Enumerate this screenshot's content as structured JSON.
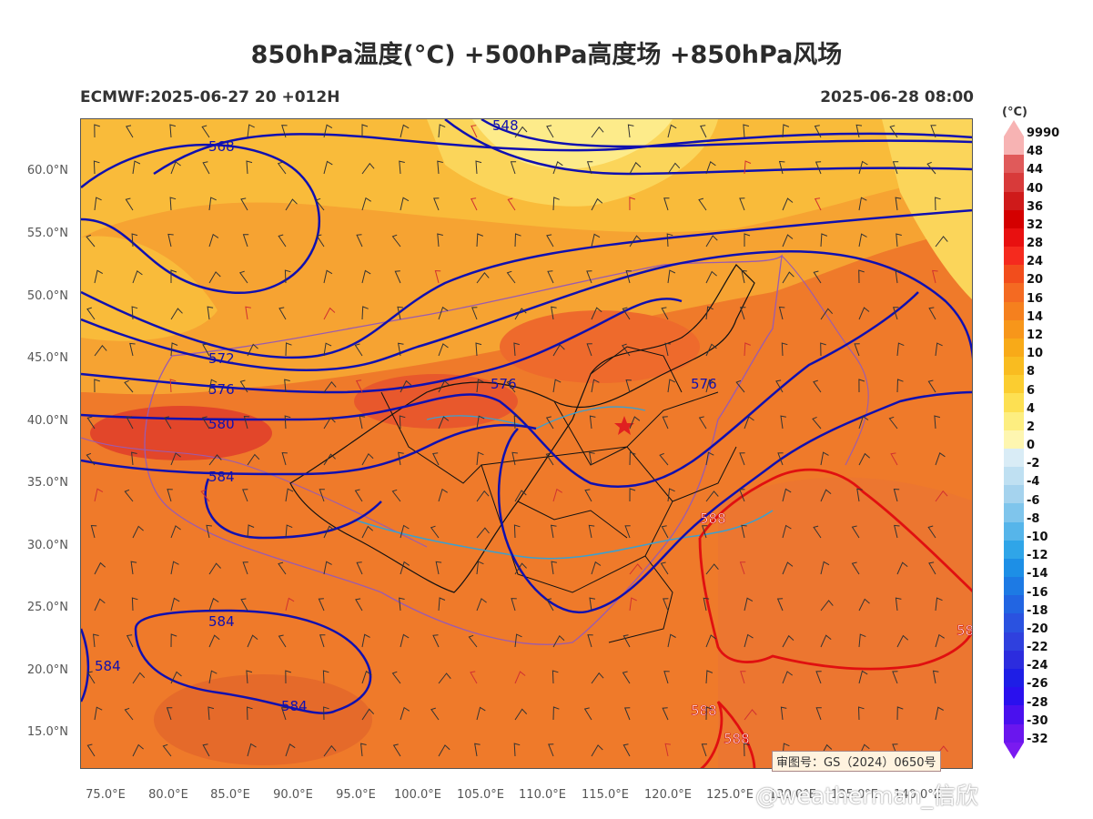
{
  "title": "850hPa温度(°C) +500hPa高度场 +850hPa风场",
  "subtitle_left": "ECMWF:2025-06-27 20 +012H",
  "subtitle_right": "2025-06-28 08:00",
  "lat_labels": [
    "60.0°N",
    "55.0°N",
    "50.0°N",
    "45.0°N",
    "40.0°N",
    "35.0°N",
    "30.0°N",
    "25.0°N",
    "20.0°N",
    "15.0°N"
  ],
  "lon_labels": [
    "75.0°E",
    "80.0°E",
    "85.0°E",
    "90.0°E",
    "95.0°E",
    "100.0°E",
    "105.0°E",
    "110.0°E",
    "115.0°E",
    "120.0°E",
    "125.0°E",
    "130.0°E",
    "135.0°E",
    "140.0°E"
  ],
  "colorbar": {
    "unit": "(°C)",
    "labels": [
      "9990",
      "48",
      "44",
      "40",
      "36",
      "32",
      "28",
      "24",
      "20",
      "16",
      "14",
      "12",
      "10",
      "8",
      "6",
      "4",
      "2",
      "0",
      "-2",
      "-4",
      "-6",
      "-8",
      "-10",
      "-12",
      "-14",
      "-16",
      "-18",
      "-20",
      "-22",
      "-24",
      "-26",
      "-28",
      "-30",
      "-32"
    ],
    "colors": [
      "#f7b3b3",
      "#e05a5a",
      "#d83a3a",
      "#cf1a1a",
      "#d40000",
      "#e81010",
      "#f52a1e",
      "#f24d1c",
      "#f46a22",
      "#f5801e",
      "#f7961a",
      "#f8aa18",
      "#f9bc20",
      "#fbcd30",
      "#fde052",
      "#fdee80",
      "#fef6b0",
      "#d9ecf6",
      "#bfe0f2",
      "#a5d3ee",
      "#7fc5ec",
      "#56b5ea",
      "#2fa5e8",
      "#1d8fe6",
      "#1d7ae4",
      "#2265e2",
      "#2a52e0",
      "#2f40de",
      "#2c2cde",
      "#1e1ee6",
      "#2a10ee",
      "#4a10ee",
      "#6a16ee"
    ]
  },
  "contours": {
    "blue": [
      "548",
      "568",
      "572",
      "576",
      "580",
      "584",
      "584",
      "584",
      "576",
      "576",
      "584"
    ],
    "red": [
      "588",
      "588",
      "588",
      "58"
    ]
  },
  "approval_number": "审图号：GS（2024）0650号",
  "watermark": "@weatherman_信欣"
}
